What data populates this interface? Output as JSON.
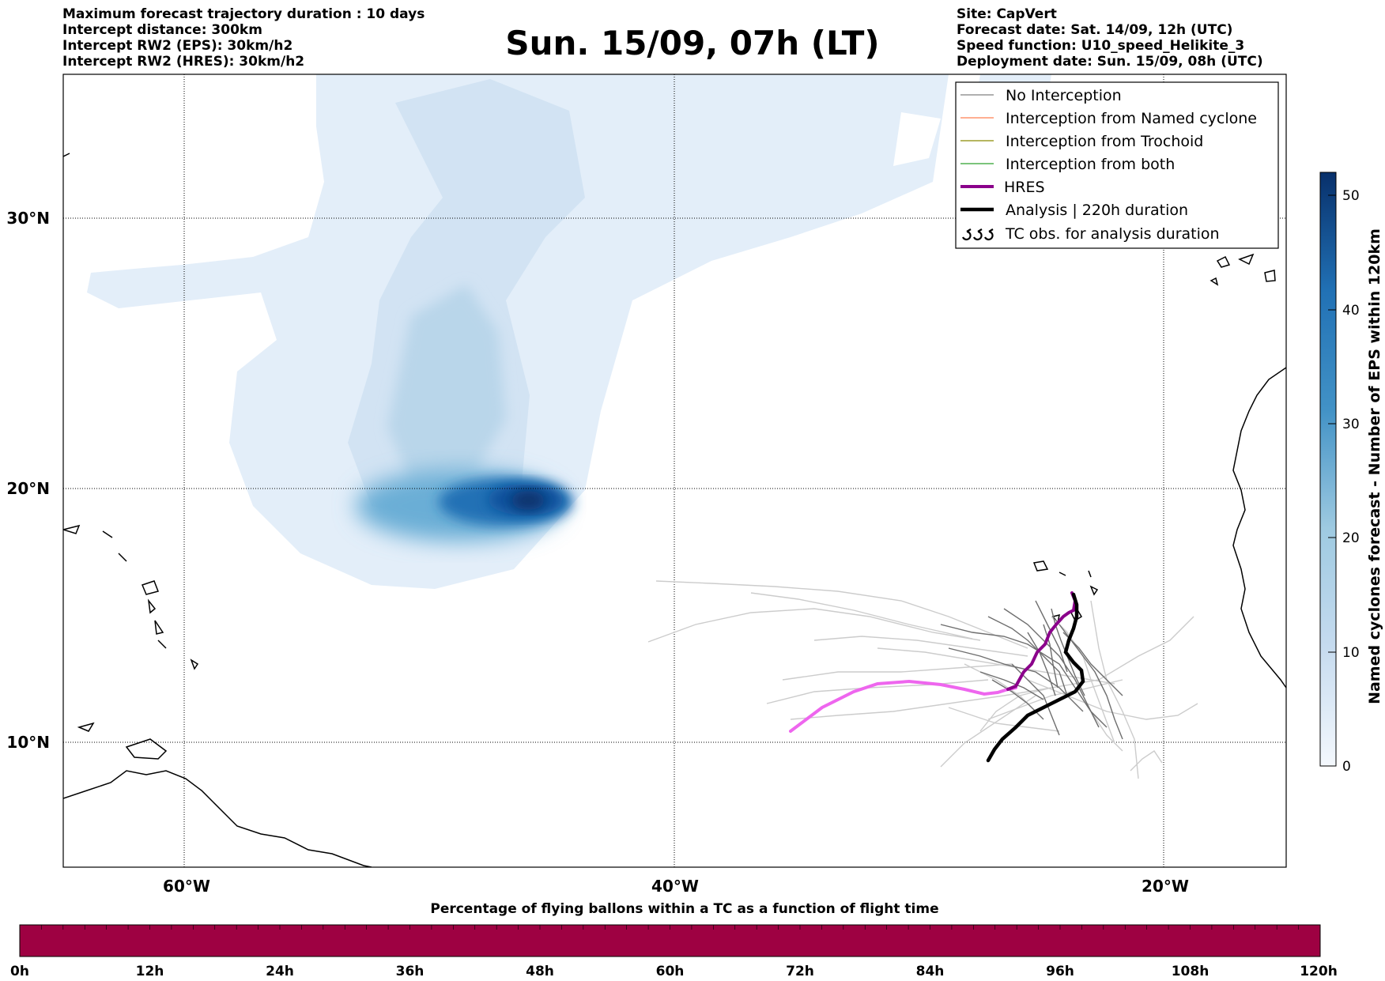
{
  "header_left": [
    "Maximum forecast trajectory duration : 10 days",
    "Intercept distance: 300km",
    "Intercept RW2 (EPS):  30km/h2",
    "Intercept RW2 (HRES): 30km/h2"
  ],
  "header_right": [
    "Site: CapVert",
    "Forecast date: Sat. 14/09, 12h (UTC)",
    "Speed function: U10_speed_Helikite_3",
    "Deployment date: Sun. 15/09, 08h (UTC)"
  ],
  "title": "Sun. 15/09, 07h (LT)",
  "map": {
    "lat_labels": [
      "30°N",
      "20°N",
      "10°N"
    ],
    "lon_labels": [
      "60°W",
      "40°W",
      "20°W"
    ]
  },
  "legend": [
    {
      "label": "No Interception",
      "color": "#808080",
      "style": "thin-line"
    },
    {
      "label": "Interception from Named cyclone",
      "color": "#ff7f50",
      "style": "thin-line"
    },
    {
      "label": "Interception from Trochoid",
      "color": "#8b8b00",
      "style": "thin-line"
    },
    {
      "label": "Interception from both",
      "color": "#2ca02c",
      "style": "thin-line"
    },
    {
      "label": "HRES",
      "color": "#8b008b",
      "style": "thick-line"
    },
    {
      "label": "Analysis | 220h duration",
      "color": "#000000",
      "style": "thick-line"
    },
    {
      "label": "TC obs. for analysis duration",
      "color": "#000000",
      "style": "tc-symbol",
      "symbol": "ᱛᱛᱛ"
    }
  ],
  "colorbar_right": {
    "label": "Named cyclones forecast - Number of EPS within 120km",
    "ticks": [
      "0",
      "10",
      "20",
      "30",
      "40",
      "50"
    ],
    "min": 0,
    "max": 52,
    "color_low": "#e3eef9",
    "color_high": "#08306b"
  },
  "colorbar_bottom": {
    "label": "Percentage of flying ballons within a TC as a function of flight time",
    "ticks": [
      "0h",
      "12h",
      "24h",
      "36h",
      "48h",
      "60h",
      "72h",
      "84h",
      "96h",
      "108h",
      "120h"
    ],
    "fill_color": "#9e0142"
  }
}
